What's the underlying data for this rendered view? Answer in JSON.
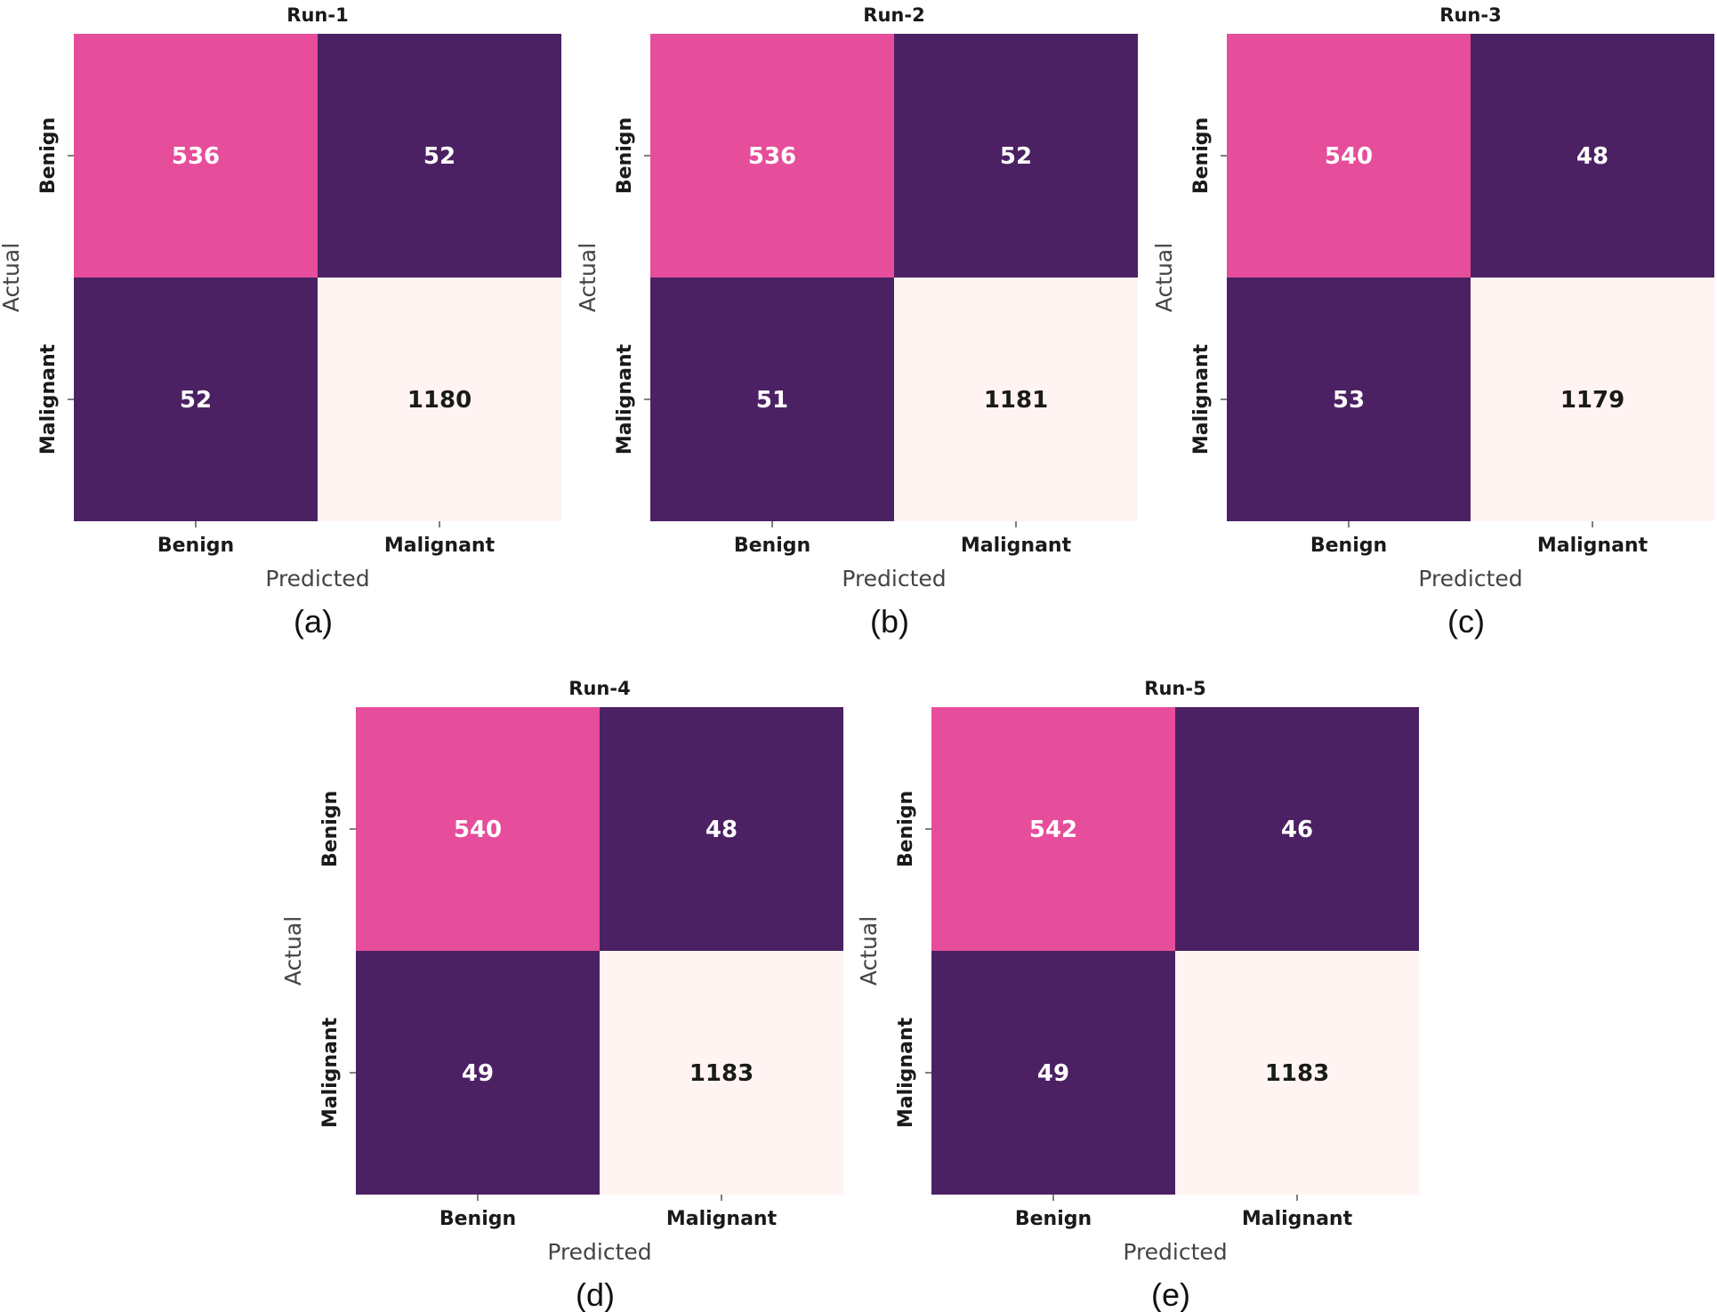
{
  "colors": {
    "high_cell": "#e64d9a",
    "low_cell": "#4b2163",
    "max_cell": "#fff4f1",
    "light_text": "#ffffff",
    "dark_text": "#1a1a1a"
  },
  "chart_data": [
    {
      "type": "heatmap",
      "panel_label": "(a)",
      "title": "Run-1",
      "xlabel": "Predicted",
      "ylabel": "Actual",
      "x_categories": [
        "Benign",
        "Malignant"
      ],
      "y_categories": [
        "Benign",
        "Malignant"
      ],
      "values": [
        [
          536,
          52
        ],
        [
          52,
          1180
        ]
      ]
    },
    {
      "type": "heatmap",
      "panel_label": "(b)",
      "title": "Run-2",
      "xlabel": "Predicted",
      "ylabel": "Actual",
      "x_categories": [
        "Benign",
        "Malignant"
      ],
      "y_categories": [
        "Benign",
        "Malignant"
      ],
      "values": [
        [
          536,
          52
        ],
        [
          51,
          1181
        ]
      ]
    },
    {
      "type": "heatmap",
      "panel_label": "(c)",
      "title": "Run-3",
      "xlabel": "Predicted",
      "ylabel": "Actual",
      "x_categories": [
        "Benign",
        "Malignant"
      ],
      "y_categories": [
        "Benign",
        "Malignant"
      ],
      "values": [
        [
          540,
          48
        ],
        [
          53,
          1179
        ]
      ]
    },
    {
      "type": "heatmap",
      "panel_label": "(d)",
      "title": "Run-4",
      "xlabel": "Predicted",
      "ylabel": "Actual",
      "x_categories": [
        "Benign",
        "Malignant"
      ],
      "y_categories": [
        "Benign",
        "Malignant"
      ],
      "values": [
        [
          540,
          48
        ],
        [
          49,
          1183
        ]
      ]
    },
    {
      "type": "heatmap",
      "panel_label": "(e)",
      "title": "Run-5",
      "xlabel": "Predicted",
      "ylabel": "Actual",
      "x_categories": [
        "Benign",
        "Malignant"
      ],
      "y_categories": [
        "Benign",
        "Malignant"
      ],
      "values": [
        [
          542,
          46
        ],
        [
          49,
          1183
        ]
      ]
    }
  ]
}
